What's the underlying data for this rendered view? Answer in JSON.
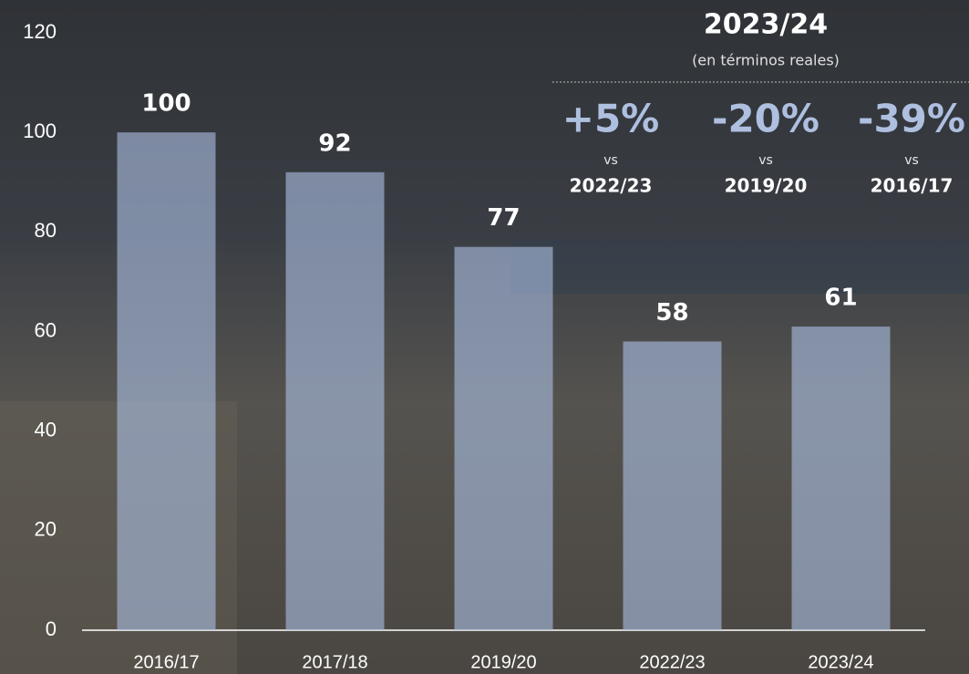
{
  "chart_data": {
    "type": "bar",
    "categories": [
      "2016/17",
      "2017/18",
      "2019/20",
      "2022/23",
      "2023/24"
    ],
    "values": [
      100,
      92,
      77,
      58,
      61
    ],
    "color": "#a9bde0",
    "ylim": [
      0,
      120
    ],
    "yticks": [
      0,
      20,
      40,
      60,
      80,
      100,
      120
    ],
    "grid": false,
    "annotation": {
      "title": "2023/24",
      "subtitle": "(en términos reales)",
      "items": [
        {
          "change": "+5%",
          "vs": "vs",
          "period": "2022/23"
        },
        {
          "change": "-20%",
          "vs": "vs",
          "period": "2019/20"
        },
        {
          "change": "-39%",
          "vs": "vs",
          "period": "2016/17"
        }
      ]
    }
  }
}
